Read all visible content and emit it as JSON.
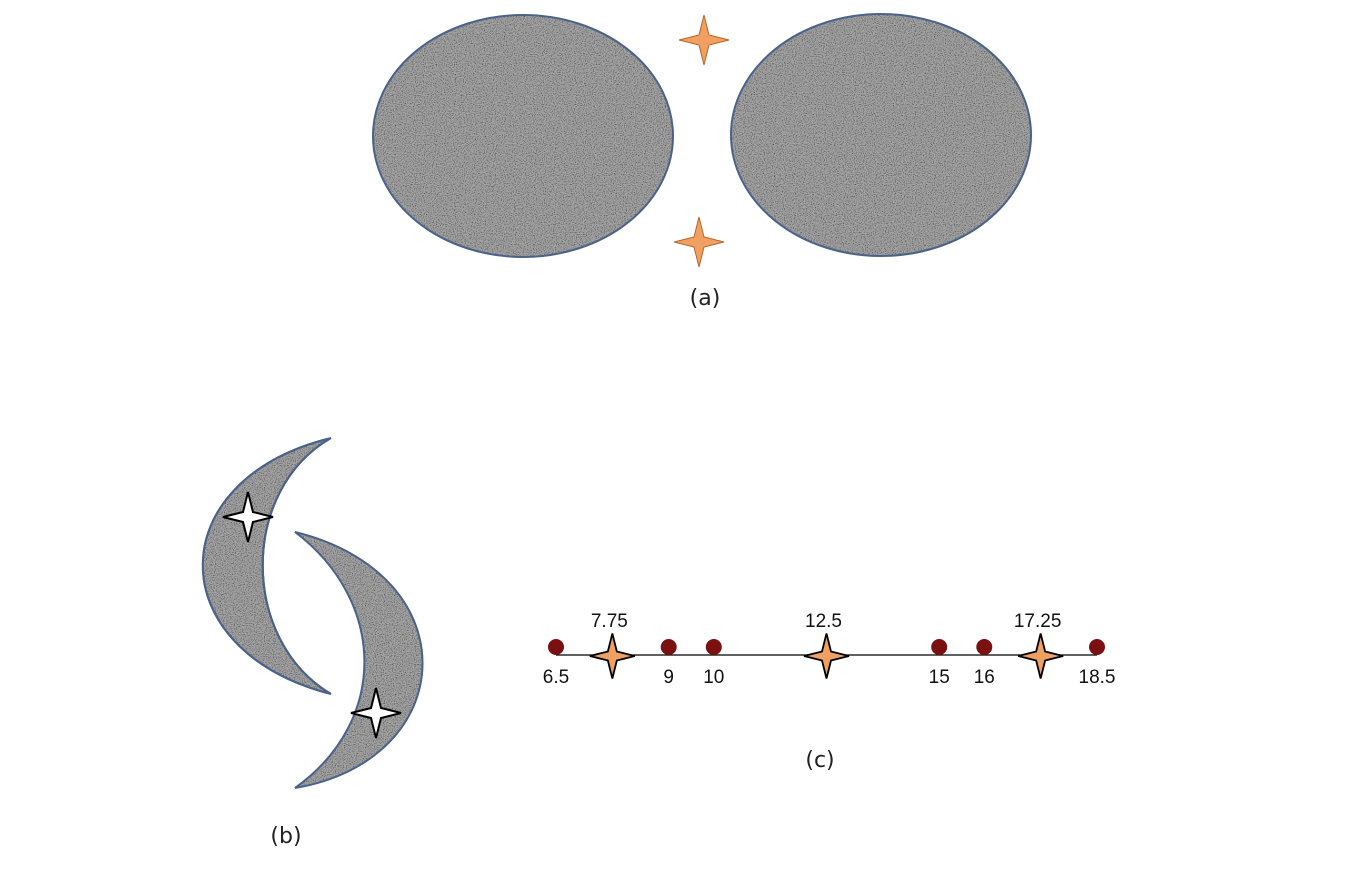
{
  "panel_a": {
    "caption": "(a)"
  },
  "panel_b": {
    "caption": "(b)"
  },
  "panel_c": {
    "caption": "(c)",
    "axis_min": 6.5,
    "axis_max": 18.5,
    "points": [
      {
        "value": 6.5,
        "label": "6.5"
      },
      {
        "value": 9,
        "label": "9"
      },
      {
        "value": 10,
        "label": "10"
      },
      {
        "value": 15,
        "label": "15"
      },
      {
        "value": 16,
        "label": "16"
      },
      {
        "value": 18.5,
        "label": "18.5"
      }
    ],
    "stars": [
      {
        "value": 7.75,
        "label": "7.75"
      },
      {
        "value": 12.5,
        "label": "12.5"
      },
      {
        "value": 17.25,
        "label": "17.25"
      }
    ]
  },
  "colors": {
    "shape_fill": "#a5a5a5",
    "shape_outline": "#4a6289",
    "orange_star": "#f0a060",
    "orange_star_stroke": "#b8642a",
    "point_fill": "#7a1010",
    "white_star": "#ffffff",
    "line": "#000000"
  },
  "icons": {
    "orange_star": "four-point-star-orange",
    "white_star": "four-point-star-white",
    "point": "dot"
  }
}
